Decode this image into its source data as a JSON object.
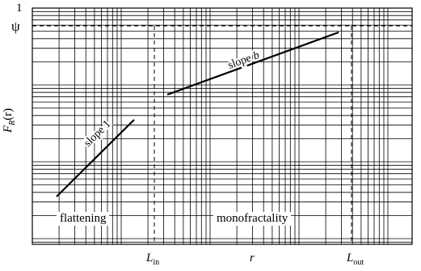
{
  "y_axis": {
    "top_tick": "1",
    "psi": "ψ",
    "label_main": "F",
    "label_sub": "R",
    "label_arg": "(r)"
  },
  "x_axis": {
    "l_in_main": "L",
    "l_in_sub": "in",
    "r": "r",
    "l_out_main": "L",
    "l_out_sub": "out"
  },
  "segments": {
    "slope_one_label": "slope 1",
    "slope_b_prefix": "slope ",
    "slope_b_var": "b"
  },
  "regions": {
    "flattening": "flattening",
    "monofractality": "monofractality"
  }
}
